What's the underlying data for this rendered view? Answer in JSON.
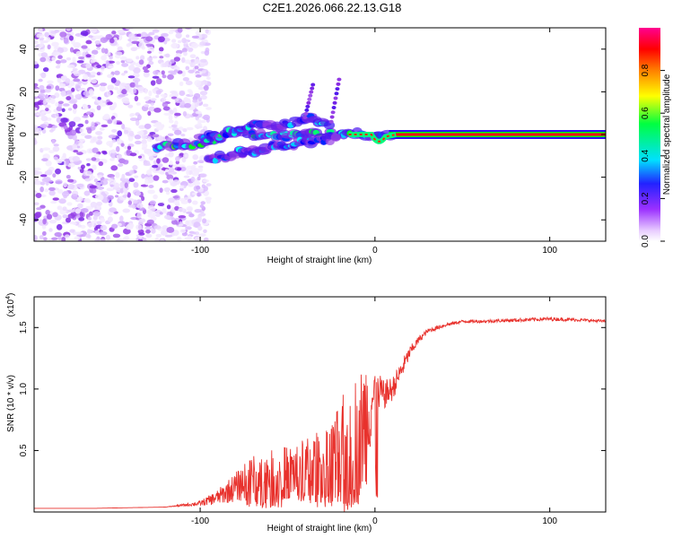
{
  "title": "C2E1.2026.066.22.13.G18",
  "chart_data": [
    {
      "type": "heatmap",
      "name": "spectrogram",
      "xlabel": "Height of straight line (km)",
      "ylabel": "Frequency (Hz)",
      "xlim": [
        -195,
        132
      ],
      "ylim": [
        -50,
        50
      ],
      "xticks": [
        -100,
        0,
        100
      ],
      "xtick_labels": [
        "-100",
        "0",
        "100"
      ],
      "yticks": [
        -40,
        -20,
        0,
        20,
        40
      ],
      "ytick_labels": [
        "-40",
        "-20",
        "0",
        "20",
        "40"
      ],
      "colorbar": {
        "label": "Normalized spectral amplitude",
        "range": [
          0,
          1
        ],
        "ticks": [
          0.0,
          0.2,
          0.4,
          0.6,
          0.8
        ],
        "tick_labels": [
          "0.0",
          "0.2",
          "0.4",
          "0.6",
          "0.8"
        ],
        "colormap": [
          "#ffffff",
          "#d9b8ff",
          "#8a2be2",
          "#0000ff",
          "#00ffff",
          "#00ff00",
          "#ffff00",
          "#ff8000",
          "#ff0000",
          "#ff00aa"
        ]
      },
      "carrier_line": {
        "x_start": 10,
        "x_end": 132,
        "y": 0,
        "amplitude": 0.9
      },
      "noise_region": {
        "x_start": -195,
        "x_end": -100,
        "y_start": -50,
        "y_end": 50
      },
      "signal_tracks": [
        {
          "points": [
            [
              -125,
              -6
            ],
            [
              -100,
              -4
            ],
            [
              -80,
              1
            ],
            [
              -60,
              -1
            ],
            [
              -40,
              0
            ],
            [
              -20,
              0
            ],
            [
              0,
              0
            ],
            [
              10,
              0
            ]
          ],
          "amplitude": 0.45
        },
        {
          "points": [
            [
              -100,
              -2
            ],
            [
              -85,
              0
            ],
            [
              -70,
              6
            ],
            [
              -55,
              3
            ],
            [
              -40,
              8
            ],
            [
              -25,
              5
            ]
          ],
          "amplitude": 0.4
        },
        {
          "points": [
            [
              -95,
              -12
            ],
            [
              -80,
              -9
            ],
            [
              -65,
              -7
            ],
            [
              -50,
              -5
            ],
            [
              -35,
              -3
            ],
            [
              -20,
              -2
            ]
          ],
          "amplitude": 0.35
        }
      ]
    },
    {
      "type": "line",
      "name": "snr",
      "xlabel": "Height of straight line (km)",
      "ylabel": "SNR (10 * v/v)",
      "scale_label": "(x10",
      "scale_exponent": "4",
      "xlim": [
        -195,
        132
      ],
      "ylim": [
        0,
        1.75
      ],
      "xticks": [
        -100,
        0,
        100
      ],
      "xtick_labels": [
        "-100",
        "0",
        "100"
      ],
      "yticks": [
        0.5,
        1.0,
        1.5
      ],
      "ytick_labels": [
        "0.5",
        "1.0",
        "1.5"
      ],
      "color": "#e8322d",
      "x": [
        -195,
        -160,
        -120,
        -100,
        -90,
        -80,
        -70,
        -60,
        -50,
        -40,
        -30,
        -20,
        -15,
        -10,
        -5,
        0,
        5,
        10,
        15,
        20,
        25,
        30,
        40,
        50,
        60,
        80,
        100,
        120,
        132
      ],
      "y": [
        0.03,
        0.03,
        0.04,
        0.07,
        0.12,
        0.2,
        0.28,
        0.3,
        0.32,
        0.35,
        0.38,
        0.42,
        0.5,
        0.6,
        0.75,
        0.98,
        0.95,
        1.0,
        1.15,
        1.3,
        1.4,
        1.47,
        1.52,
        1.55,
        1.55,
        1.56,
        1.57,
        1.56,
        1.55
      ],
      "noise_amplitude": [
        0,
        0,
        0,
        0.02,
        0.06,
        0.12,
        0.18,
        0.2,
        0.22,
        0.25,
        0.3,
        0.45,
        0.6,
        0.55,
        0.5,
        0.2,
        0.12,
        0.1,
        0.08,
        0.05,
        0.03,
        0.02,
        0.015,
        0.012,
        0.012,
        0.015,
        0.015,
        0.012,
        0.012
      ]
    }
  ]
}
